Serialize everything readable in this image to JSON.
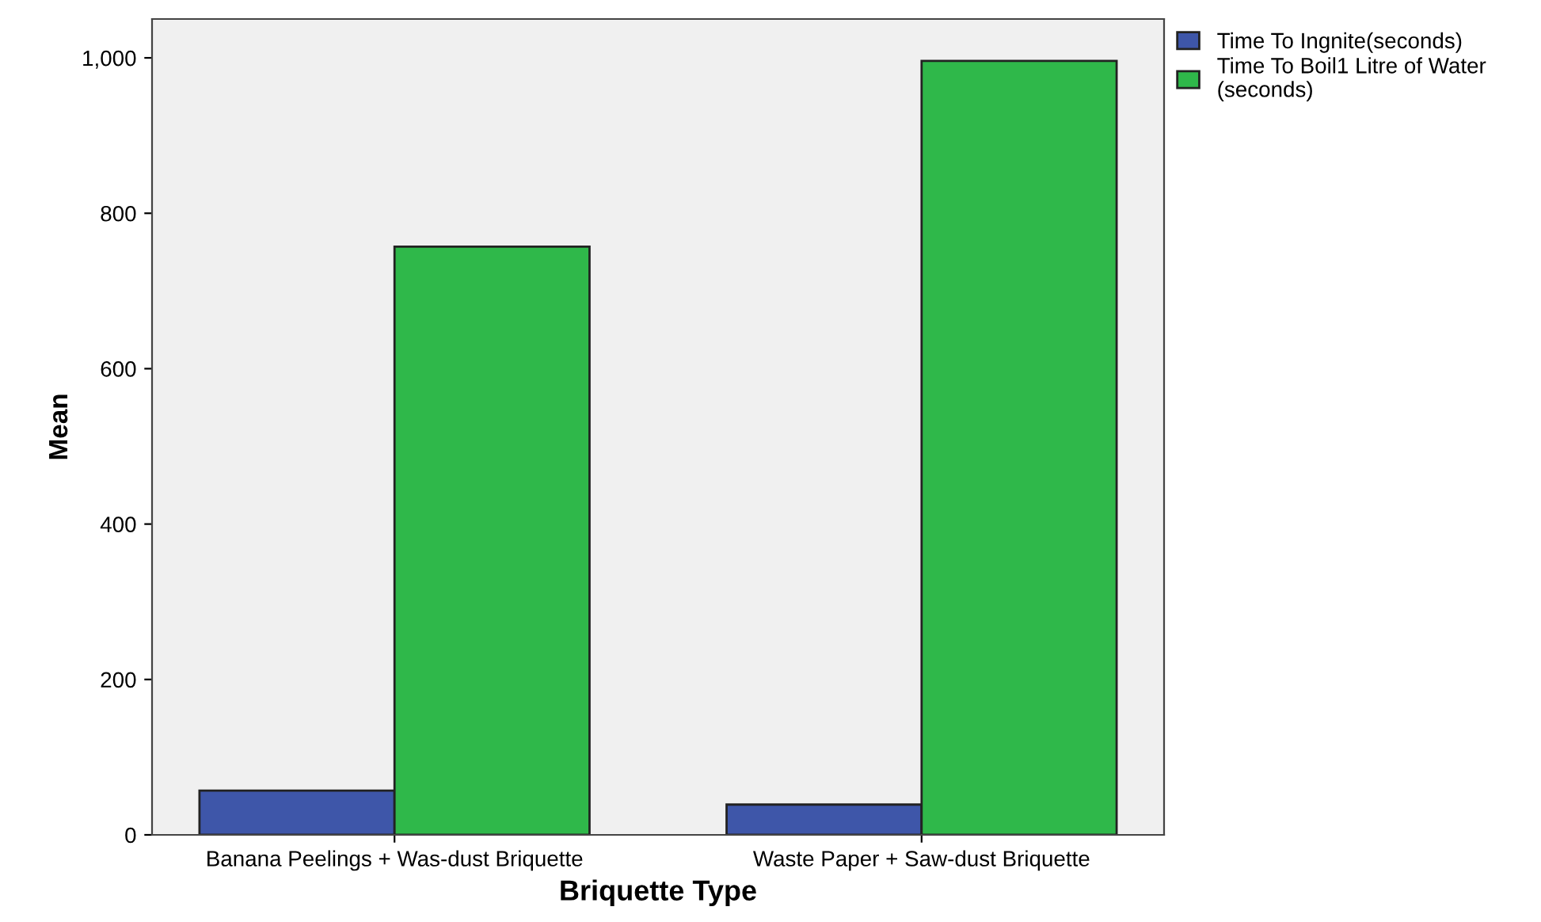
{
  "chart_data": {
    "type": "bar",
    "xlabel": "Briquette Type",
    "ylabel": "Mean",
    "categories": [
      "Banana Peelings + Was-dust Briquette",
      "Waste Paper + Saw-dust Briquette"
    ],
    "series": [
      {
        "name": "Time To Ingnite(seconds)",
        "color": "#3e56a9",
        "values": [
          57,
          39
        ]
      },
      {
        "name": "Time To Boil1 Litre of Water\n(seconds)",
        "color": "#2fb84a",
        "values": [
          757,
          996
        ]
      }
    ],
    "ylim": [
      0,
      1050
    ],
    "yticks": [
      0,
      200,
      400,
      600,
      800,
      {
        "value": 1000,
        "label": "1,000"
      }
    ],
    "grid": false,
    "legend": "top right"
  }
}
